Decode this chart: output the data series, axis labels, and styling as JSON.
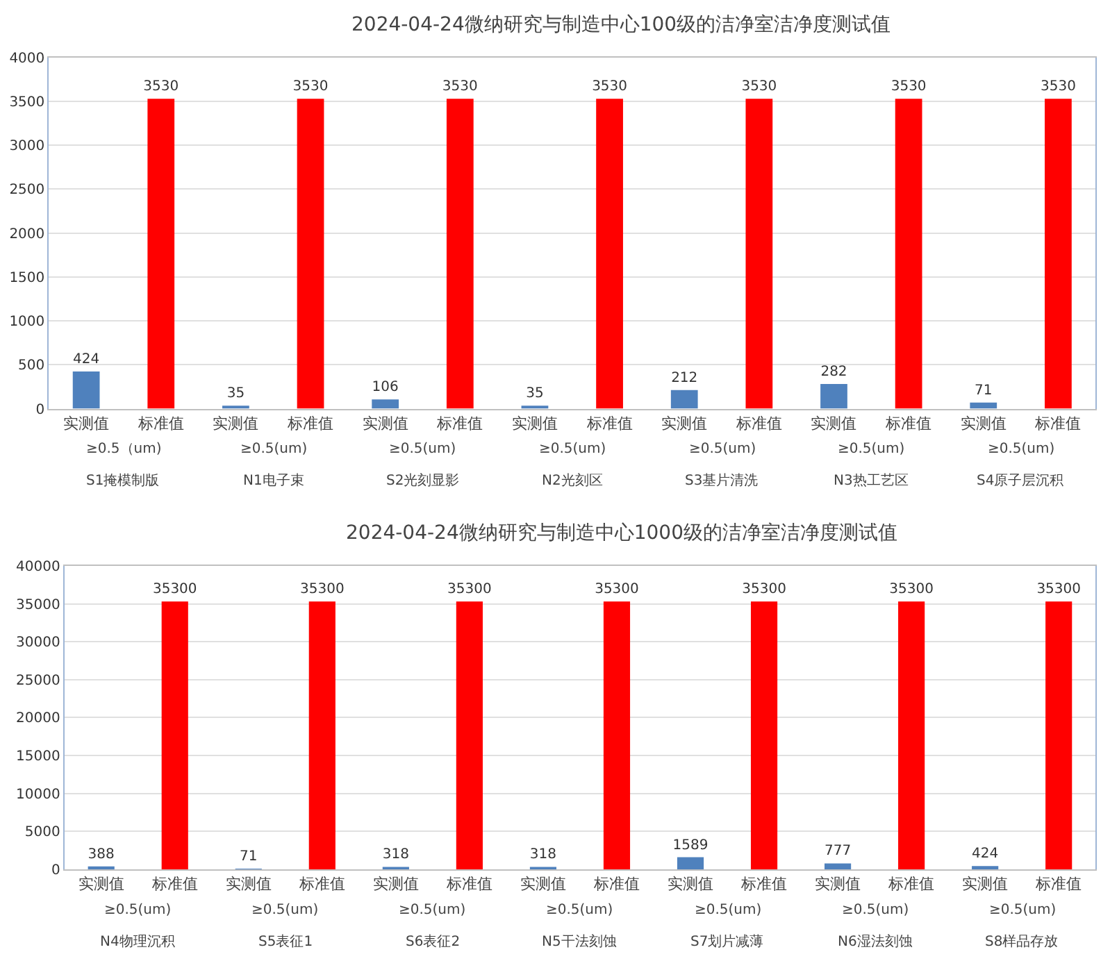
{
  "chart_data": [
    {
      "type": "bar",
      "title": "2024-04-24微纳研究与制造中心100级的洁净室洁净度测试值",
      "categories": [
        "实测值",
        "标准值",
        "实测值",
        "标准值",
        "实测值",
        "标准值",
        "实测值",
        "标准值",
        "实测值",
        "标准值",
        "实测值",
        "标准值",
        "实测值",
        "标准值"
      ],
      "series": [
        {
          "values": [
            424,
            3530,
            35,
            3530,
            106,
            3530,
            35,
            3530,
            212,
            3530,
            282,
            3530,
            71,
            3530
          ],
          "colors": [
            "#4f81bd",
            "#ff0000",
            "#4f81bd",
            "#ff0000",
            "#4f81bd",
            "#ff0000",
            "#4f81bd",
            "#ff0000",
            "#4f81bd",
            "#ff0000",
            "#4f81bd",
            "#ff0000",
            "#4f81bd",
            "#ff0000"
          ]
        }
      ],
      "annotations": [
        "≥0.5（um)",
        "≥0.5(um)",
        "≥0.5(um)",
        "≥0.5(um)",
        "≥0.5(um)",
        "≥0.5(um)",
        "≥0.5(um)",
        "S1掩模制版",
        "N1电子束",
        "S2光刻显影",
        "N2光刻区",
        "S3基片清洗",
        "N3热工艺区",
        "S4原子层沉积"
      ],
      "ylim": [
        0,
        4000
      ],
      "yticks": [
        0,
        500,
        1000,
        1500,
        2000,
        2500,
        3000,
        3500,
        4000
      ],
      "grid": "y",
      "data_labels": true
    },
    {
      "type": "bar",
      "title": "2024-04-24微纳研究与制造中心1000级的洁净室洁净度测试值",
      "categories": [
        "实测值",
        "标准值",
        "实测值",
        "标准值",
        "实测值",
        "标准值",
        "实测值",
        "标准值",
        "实测值",
        "标准值",
        "实测值",
        "标准值",
        "实测值",
        "标准值"
      ],
      "series": [
        {
          "values": [
            388,
            35300,
            71,
            35300,
            318,
            35300,
            318,
            35300,
            1589,
            35300,
            777,
            35300,
            424,
            35300
          ],
          "colors": [
            "#4f81bd",
            "#ff0000",
            "#4f81bd",
            "#ff0000",
            "#4f81bd",
            "#ff0000",
            "#4f81bd",
            "#ff0000",
            "#4f81bd",
            "#ff0000",
            "#4f81bd",
            "#ff0000",
            "#4f81bd",
            "#ff0000"
          ]
        }
      ],
      "annotations": [
        "≥0.5(um)",
        "≥0.5(um)",
        "≥0.5(um)",
        "≥0.5(um)",
        "≥0.5(um)",
        "≥0.5(um)",
        "≥0.5(um)",
        "N4物理沉积",
        "S5表征1",
        "S6表征2",
        "N5干法刻蚀",
        "S7划片减薄",
        "N6湿法刻蚀",
        "S8样品存放"
      ],
      "ylim": [
        0,
        40000
      ],
      "yticks": [
        0,
        5000,
        10000,
        15000,
        20000,
        25000,
        30000,
        35000,
        40000
      ],
      "grid": "y",
      "data_labels": true
    }
  ]
}
